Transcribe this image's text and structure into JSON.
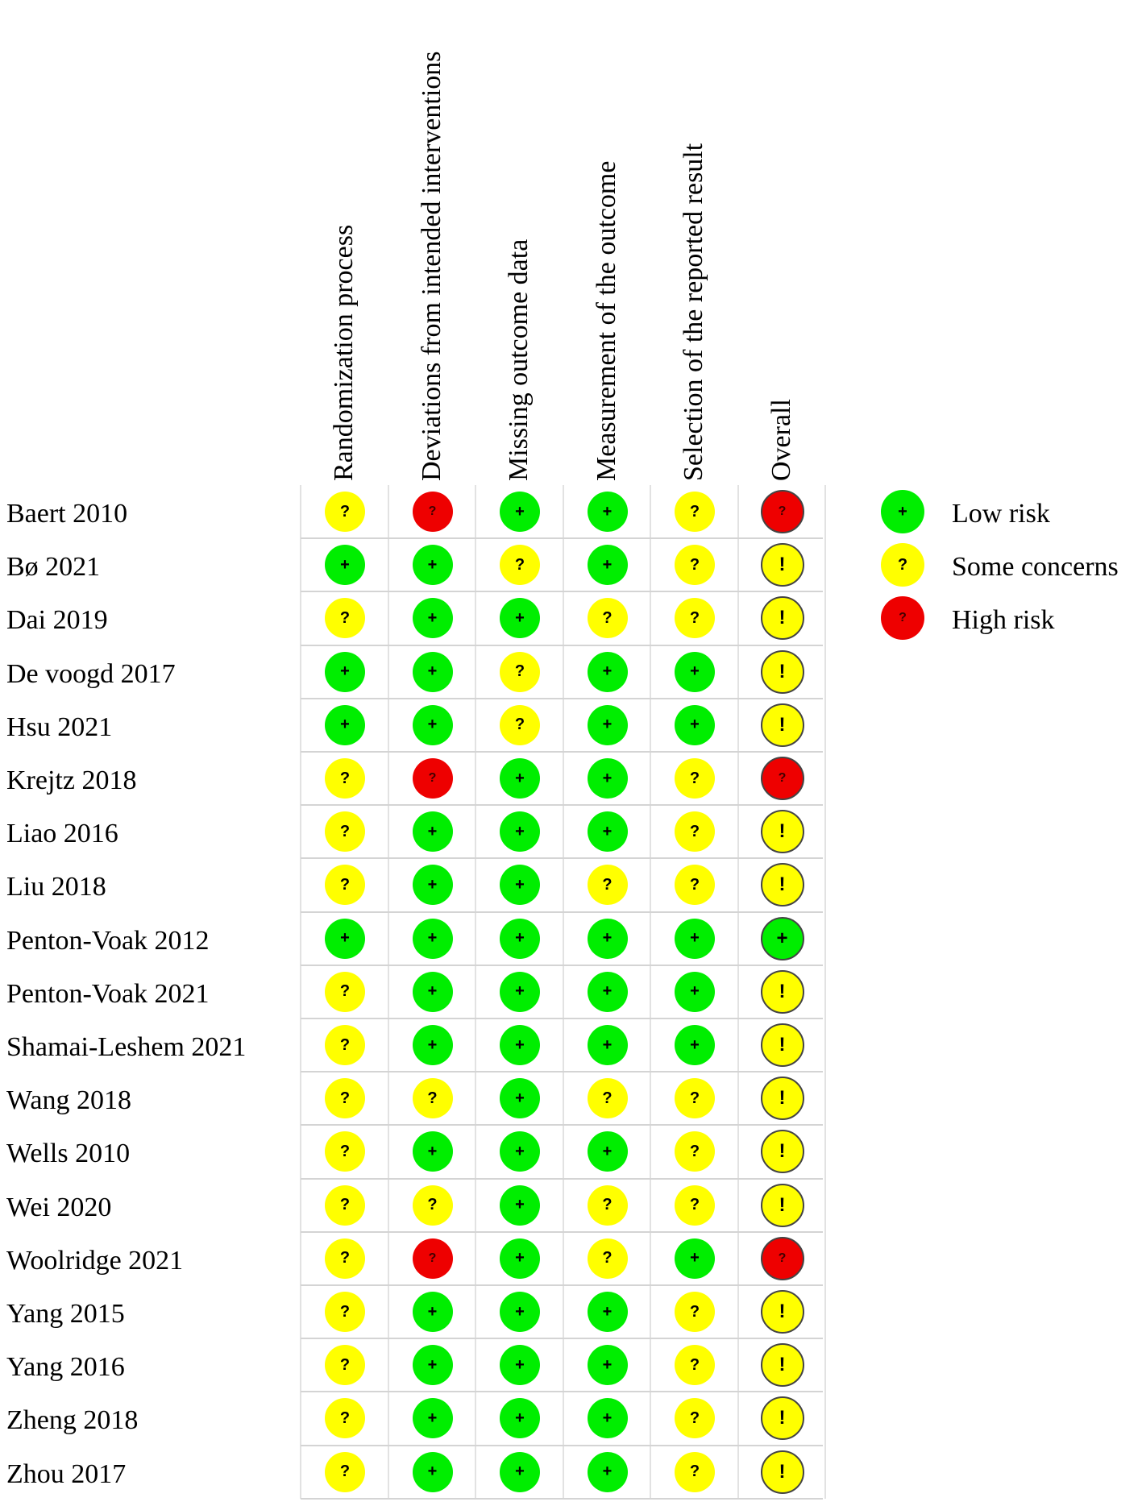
{
  "columns": [
    "Randomization process",
    "Deviations from intended interventions",
    "Missing outcome data",
    "Measurement of the outcome",
    "Selection of the reported result",
    "Overall"
  ],
  "legend": [
    {
      "key": "low",
      "label": "Low risk",
      "symbol": "+",
      "color": "#00ee00"
    },
    {
      "key": "some",
      "label": "Some concerns",
      "symbol": "?",
      "color": "#ffff00"
    },
    {
      "key": "high",
      "label": "High risk",
      "symbol": "?",
      "color": "#ee0000"
    }
  ],
  "colors": {
    "low": "#00ee00",
    "some": "#ffff00",
    "high": "#ee0000"
  },
  "symbols": {
    "domain": {
      "low": "+",
      "some": "?",
      "high": "?"
    },
    "overall": {
      "low": "+",
      "some": "!",
      "high": "?"
    }
  },
  "studies": [
    {
      "name": "Baert 2010",
      "ratings": [
        "some",
        "high",
        "low",
        "low",
        "some",
        "high"
      ]
    },
    {
      "name": "Bø 2021",
      "ratings": [
        "low",
        "low",
        "some",
        "low",
        "some",
        "some"
      ]
    },
    {
      "name": "Dai 2019",
      "ratings": [
        "some",
        "low",
        "low",
        "some",
        "some",
        "some"
      ]
    },
    {
      "name": "De voogd 2017",
      "ratings": [
        "low",
        "low",
        "some",
        "low",
        "low",
        "some"
      ]
    },
    {
      "name": "Hsu 2021",
      "ratings": [
        "low",
        "low",
        "some",
        "low",
        "low",
        "some"
      ]
    },
    {
      "name": "Krejtz 2018",
      "ratings": [
        "some",
        "high",
        "low",
        "low",
        "some",
        "high"
      ]
    },
    {
      "name": "Liao 2016",
      "ratings": [
        "some",
        "low",
        "low",
        "low",
        "some",
        "some"
      ]
    },
    {
      "name": "Liu 2018",
      "ratings": [
        "some",
        "low",
        "low",
        "some",
        "some",
        "some"
      ]
    },
    {
      "name": "Penton-Voak 2012",
      "ratings": [
        "low",
        "low",
        "low",
        "low",
        "low",
        "low"
      ]
    },
    {
      "name": "Penton-Voak  2021",
      "ratings": [
        "some",
        "low",
        "low",
        "low",
        "low",
        "some"
      ]
    },
    {
      "name": "Shamai-Leshem 2021",
      "ratings": [
        "some",
        "low",
        "low",
        "low",
        "low",
        "some"
      ]
    },
    {
      "name": "Wang 2018",
      "ratings": [
        "some",
        "some",
        "low",
        "some",
        "some",
        "some"
      ]
    },
    {
      "name": "Wells 2010",
      "ratings": [
        "some",
        "low",
        "low",
        "low",
        "some",
        "some"
      ]
    },
    {
      "name": "Wei 2020",
      "ratings": [
        "some",
        "some",
        "low",
        "some",
        "some",
        "some"
      ]
    },
    {
      "name": "Woolridge 2021",
      "ratings": [
        "some",
        "high",
        "low",
        "some",
        "low",
        "high"
      ]
    },
    {
      "name": "Yang 2015",
      "ratings": [
        "some",
        "low",
        "low",
        "low",
        "some",
        "some"
      ]
    },
    {
      "name": "Yang 2016",
      "ratings": [
        "some",
        "low",
        "low",
        "low",
        "some",
        "some"
      ]
    },
    {
      "name": "Zheng 2018",
      "ratings": [
        "some",
        "low",
        "low",
        "low",
        "some",
        "some"
      ]
    },
    {
      "name": "Zhou 2017",
      "ratings": [
        "some",
        "low",
        "low",
        "low",
        "some",
        "some"
      ]
    }
  ]
}
